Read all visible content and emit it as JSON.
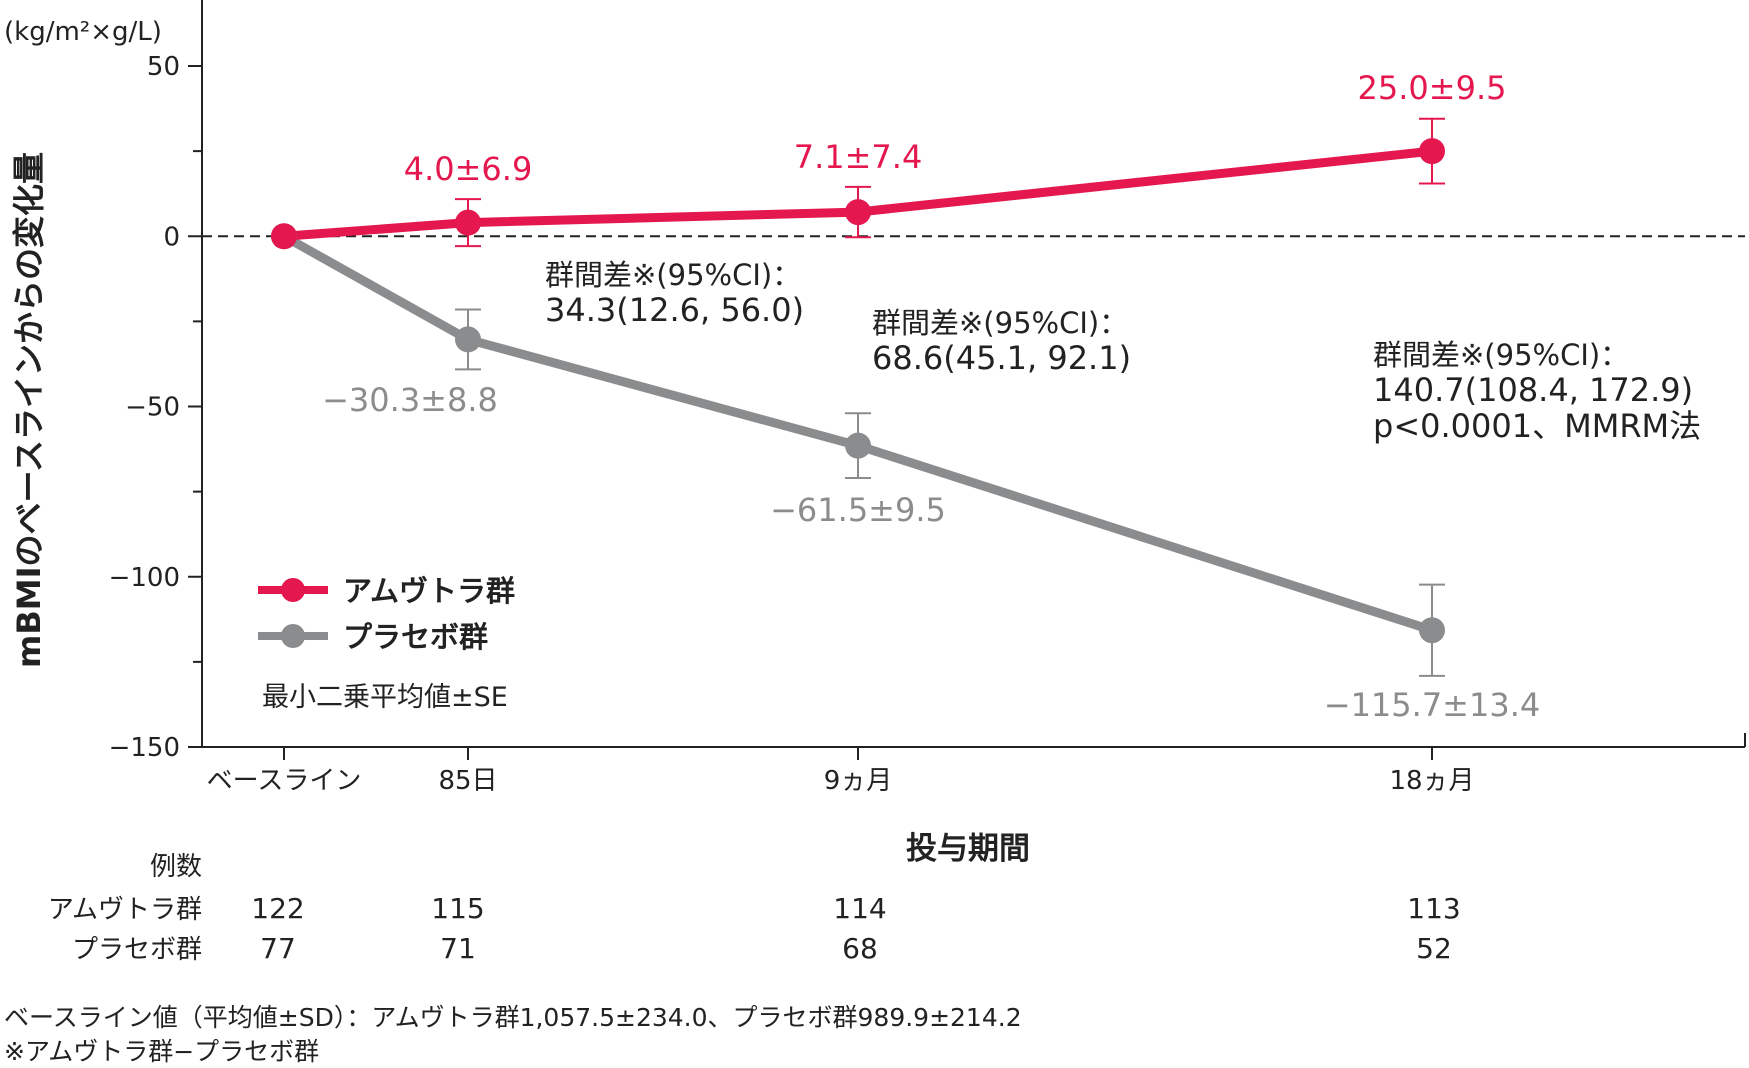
{
  "chart_data": {
    "type": "line",
    "unit_label": "(kg/m²×g/L)",
    "ylabel": "mBMIのベースラインからの変化量",
    "xlabel": "投与期間",
    "ylim": [
      -150,
      50
    ],
    "y_ticks": [
      50,
      0,
      -50,
      -100,
      -150
    ],
    "categories": [
      "ベースライン",
      "85日",
      "9ヵ月",
      "18ヵ月"
    ],
    "series": [
      {
        "name": "アムヴトラ群",
        "color": "#e4174f",
        "values": [
          0,
          4.0,
          7.1,
          25.0
        ],
        "sd": [
          0,
          6.9,
          7.4,
          9.5
        ],
        "labels": [
          "",
          "4.0±6.9",
          "7.1±7.4",
          "25.0±9.5"
        ]
      },
      {
        "name": "プラセボ群",
        "color": "#8a8c8e",
        "values": [
          0,
          -30.3,
          -61.5,
          -115.7
        ],
        "sd": [
          0,
          8.8,
          9.5,
          13.4
        ],
        "labels": [
          "",
          "−30.3±8.8",
          "−61.5±9.5",
          "−115.7±13.4"
        ]
      }
    ],
    "annotations": [
      {
        "lines": [
          "群間差※(95%CI)：",
          "34.3(12.6, 56.0)"
        ]
      },
      {
        "lines": [
          "群間差※(95%CI)：",
          "68.6(45.1, 92.1)"
        ]
      },
      {
        "lines": [
          "群間差※(95%CI)：",
          "140.7(108.4, 172.9)",
          "p<0.0001、MMRM法"
        ]
      }
    ],
    "legend_note": "最小二乗平均値±SE",
    "legend_placement": "bottom-left",
    "reference_line": 0,
    "grid": false
  },
  "counts": {
    "title": "例数",
    "rows": [
      {
        "label": "アムヴトラ群",
        "values": [
          "122",
          "115",
          "114",
          "113"
        ]
      },
      {
        "label": "プラセボ群",
        "values": [
          "77",
          "71",
          "68",
          "52"
        ]
      }
    ]
  },
  "footnotes": [
    "ベースライン値（平均値±SD）：アムヴトラ群1,057.5±234.0、プラセボ群989.9±214.2",
    "※アムヴトラ群−プラセボ群"
  ]
}
